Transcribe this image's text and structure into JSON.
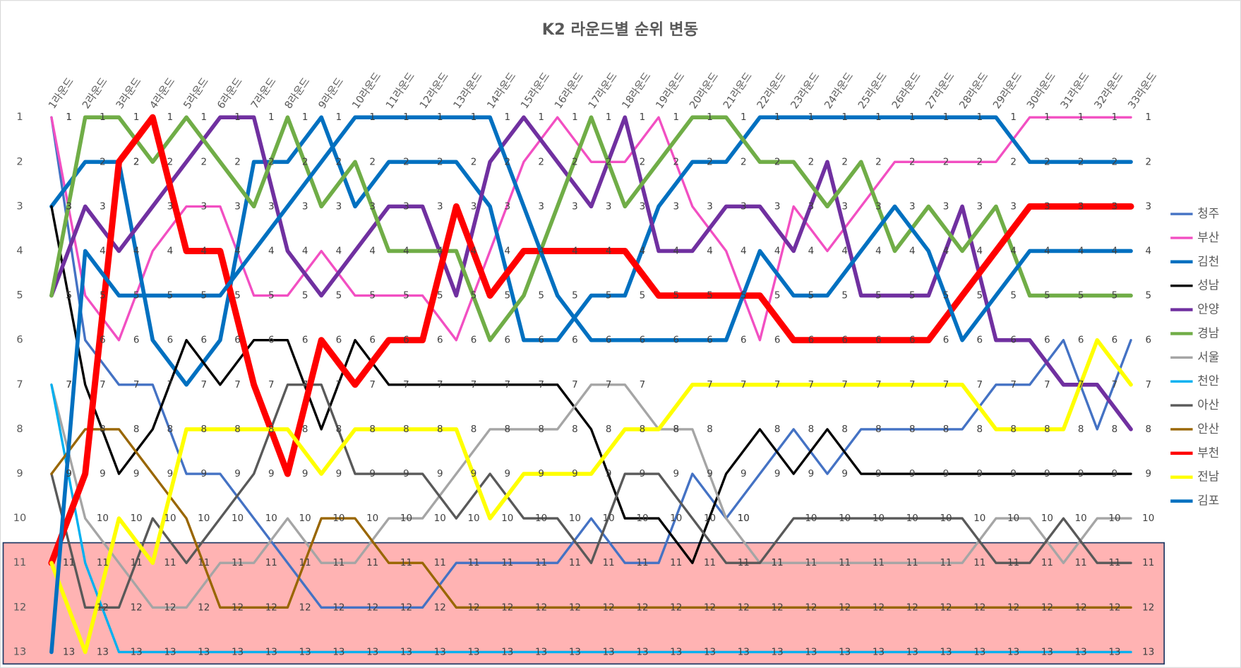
{
  "chart_data": {
    "type": "line",
    "title": "K2 라운드별 순위 변동",
    "categories": [
      "1라운드",
      "2라운드",
      "3라운드",
      "4라운드",
      "5라운드",
      "6라운드",
      "7라운드",
      "8라운드",
      "9라운드",
      "10라운드",
      "11라운드",
      "12라운드",
      "13라운드",
      "14라운드",
      "15라운드",
      "16라운드",
      "17라운드",
      "18라운드",
      "19라운드",
      "20라운드",
      "21라운드",
      "22라운드",
      "23라운드",
      "24라운드",
      "25라운드",
      "26라운드",
      "27라운드",
      "28라운드",
      "29라운드",
      "30라운드",
      "31라운드",
      "32라운드",
      "33라운드"
    ],
    "ylim": [
      13,
      1
    ],
    "yticks": [
      1,
      2,
      3,
      4,
      5,
      6,
      7,
      8,
      9,
      10,
      11,
      12,
      13
    ],
    "legend": "right",
    "data_labels": true,
    "series": [
      {
        "name": "청주",
        "color": "#4472c4",
        "width": 3,
        "values": [
          1,
          6,
          7,
          7,
          9,
          9,
          10,
          11,
          12,
          12,
          12,
          12,
          11,
          11,
          11,
          11,
          10,
          11,
          11,
          9,
          10,
          9,
          8,
          9,
          8,
          8,
          8,
          8,
          7,
          7,
          6,
          8,
          6
        ]
      },
      {
        "name": "부산",
        "color": "#f24fc2",
        "width": 3,
        "values": [
          1,
          5,
          6,
          4,
          3,
          3,
          5,
          5,
          4,
          5,
          5,
          5,
          6,
          4,
          2,
          1,
          2,
          2,
          1,
          3,
          4,
          6,
          3,
          4,
          3,
          2,
          2,
          2,
          2,
          1,
          1,
          1,
          1
        ]
      },
      {
        "name": "김천",
        "color": "#0070c0",
        "width": 5,
        "values": [
          3,
          2,
          2,
          6,
          7,
          6,
          2,
          2,
          1,
          3,
          2,
          2,
          2,
          3,
          6,
          6,
          5,
          5,
          3,
          2,
          2,
          1,
          1,
          1,
          1,
          1,
          1,
          1,
          1,
          2,
          2,
          2,
          2
        ]
      },
      {
        "name": "성남",
        "color": "#000000",
        "width": 3,
        "values": [
          3,
          7,
          9,
          8,
          6,
          7,
          6,
          6,
          8,
          6,
          7,
          7,
          7,
          7,
          7,
          7,
          8,
          10,
          10,
          11,
          9,
          8,
          9,
          8,
          9,
          9,
          9,
          9,
          9,
          9,
          9,
          9,
          9
        ]
      },
      {
        "name": "안양",
        "color": "#7030a0",
        "width": 5,
        "values": [
          5,
          3,
          4,
          3,
          2,
          1,
          1,
          4,
          5,
          4,
          3,
          3,
          5,
          2,
          1,
          2,
          3,
          1,
          4,
          4,
          3,
          3,
          4,
          2,
          5,
          5,
          5,
          3,
          6,
          6,
          7,
          7,
          8
        ]
      },
      {
        "name": "경남",
        "color": "#70ad47",
        "width": 5,
        "values": [
          5,
          1,
          1,
          2,
          1,
          2,
          3,
          1,
          3,
          2,
          4,
          4,
          4,
          6,
          5,
          3,
          1,
          3,
          2,
          1,
          1,
          2,
          2,
          3,
          2,
          4,
          3,
          4,
          3,
          5,
          5,
          5,
          5
        ]
      },
      {
        "name": "서울",
        "color": "#a5a5a5",
        "width": 3,
        "values": [
          7,
          10,
          11,
          12,
          12,
          11,
          11,
          10,
          11,
          11,
          10,
          10,
          9,
          8,
          8,
          8,
          7,
          7,
          8,
          8,
          10,
          11,
          11,
          11,
          11,
          11,
          11,
          11,
          10,
          10,
          11,
          10,
          10
        ]
      },
      {
        "name": "천안",
        "color": "#00b0f0",
        "width": 3,
        "values": [
          7,
          11,
          13,
          13,
          13,
          13,
          13,
          13,
          13,
          13,
          13,
          13,
          13,
          13,
          13,
          13,
          13,
          13,
          13,
          13,
          13,
          13,
          13,
          13,
          13,
          13,
          13,
          13,
          13,
          13,
          13,
          13,
          13
        ]
      },
      {
        "name": "아산",
        "color": "#595959",
        "width": 3,
        "values": [
          9,
          12,
          12,
          10,
          11,
          10,
          9,
          7,
          7,
          9,
          9,
          9,
          10,
          9,
          10,
          10,
          11,
          9,
          9,
          10,
          11,
          11,
          10,
          10,
          10,
          10,
          10,
          10,
          11,
          11,
          10,
          11,
          11
        ]
      },
      {
        "name": "안산",
        "color": "#996600",
        "width": 3,
        "values": [
          9,
          8,
          8,
          9,
          10,
          12,
          12,
          12,
          10,
          10,
          11,
          11,
          12,
          12,
          12,
          12,
          12,
          12,
          12,
          12,
          12,
          12,
          12,
          12,
          12,
          12,
          12,
          12,
          12,
          12,
          12,
          12,
          12
        ]
      },
      {
        "name": "부천",
        "color": "#ff0000",
        "width": 8,
        "values": [
          11,
          9,
          2,
          1,
          4,
          4,
          7,
          9,
          6,
          7,
          6,
          6,
          3,
          5,
          4,
          4,
          4,
          4,
          5,
          5,
          5,
          5,
          6,
          6,
          6,
          6,
          6,
          5,
          4,
          3,
          3,
          3,
          3
        ]
      },
      {
        "name": "전남",
        "color": "#ffff00",
        "width": 5,
        "values": [
          11,
          13,
          10,
          11,
          8,
          8,
          8,
          8,
          9,
          8,
          8,
          8,
          8,
          10,
          9,
          9,
          9,
          8,
          8,
          7,
          7,
          7,
          7,
          7,
          7,
          7,
          7,
          7,
          8,
          8,
          8,
          6,
          7
        ]
      },
      {
        "name": "김포",
        "color": "#0070c0",
        "width": 5,
        "values": [
          13,
          4,
          5,
          5,
          5,
          5,
          4,
          3,
          2,
          1,
          1,
          1,
          1,
          1,
          3,
          5,
          6,
          6,
          6,
          6,
          6,
          4,
          5,
          5,
          4,
          3,
          4,
          6,
          5,
          4,
          4,
          4,
          4
        ]
      }
    ]
  }
}
